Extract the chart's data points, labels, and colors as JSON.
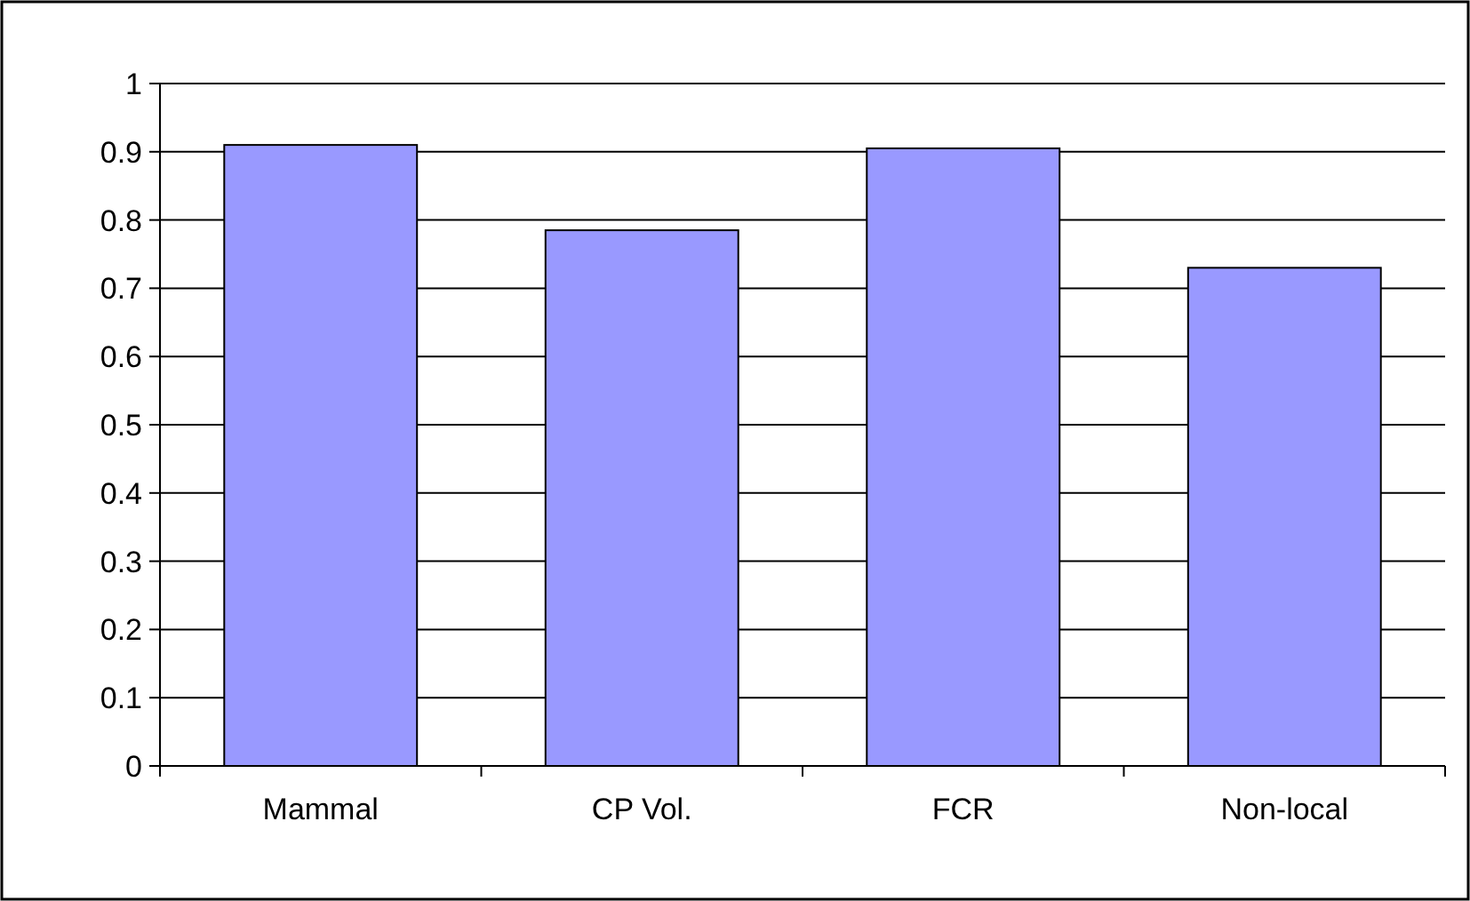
{
  "chart_data": {
    "type": "bar",
    "categories": [
      "Mammal",
      "CP Vol.",
      "FCR",
      "Non-local"
    ],
    "values": [
      0.91,
      0.785,
      0.905,
      0.73
    ],
    "color": "#9999ff",
    "ylim": [
      0,
      1
    ],
    "yticks": [
      0,
      {
        "value": 0.1,
        "label": "0.1"
      },
      {
        "value": 0.2,
        "label": "0.2"
      },
      {
        "value": 0.3,
        "label": "0.3"
      },
      {
        "value": 0.4,
        "label": "0.4"
      },
      {
        "value": 0.5,
        "label": "0.5"
      },
      {
        "value": 0.6,
        "label": "0.6"
      },
      {
        "value": 0.7,
        "label": "0.7"
      },
      {
        "value": 0.8,
        "label": "0.8"
      },
      {
        "value": 0.9,
        "label": "0.9"
      },
      1
    ],
    "grid": "y"
  }
}
